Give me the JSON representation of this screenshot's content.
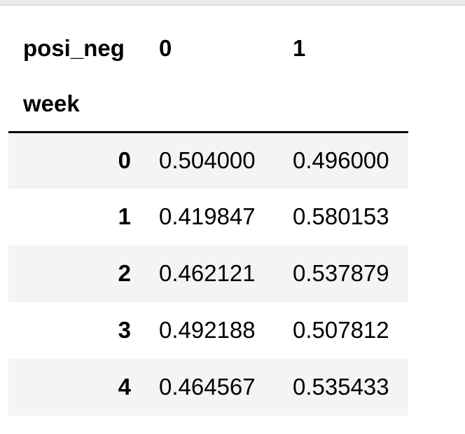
{
  "toolbar": {
    "edge_color": "#e9e9e9"
  },
  "colors": {
    "stripe": "#f4f4f4",
    "header_rule": "#000000",
    "text": "#000000",
    "background": "#ffffff"
  },
  "table": {
    "columns_axis_name": "posi_neg",
    "index_name": "week",
    "column_headers": [
      "0",
      "1"
    ],
    "rows": [
      {
        "index": "0",
        "values": [
          "0.504000",
          "0.496000"
        ]
      },
      {
        "index": "1",
        "values": [
          "0.419847",
          "0.580153"
        ]
      },
      {
        "index": "2",
        "values": [
          "0.462121",
          "0.537879"
        ]
      },
      {
        "index": "3",
        "values": [
          "0.492188",
          "0.507812"
        ]
      },
      {
        "index": "4",
        "values": [
          "0.464567",
          "0.535433"
        ]
      }
    ]
  },
  "chart_data": {
    "type": "table",
    "title": "",
    "columns_axis_name": "posi_neg",
    "index_name": "week",
    "columns": [
      "0",
      "1"
    ],
    "index": [
      0,
      1,
      2,
      3,
      4
    ],
    "values": [
      [
        0.504,
        0.496
      ],
      [
        0.419847,
        0.580153
      ],
      [
        0.462121,
        0.537879
      ],
      [
        0.492188,
        0.507812
      ],
      [
        0.464567,
        0.535433
      ]
    ]
  }
}
